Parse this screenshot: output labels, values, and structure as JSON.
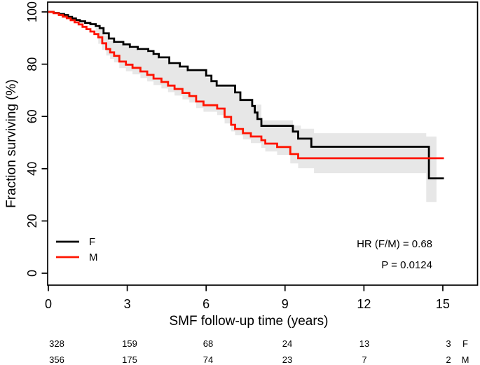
{
  "figure": {
    "background": "#ffffff",
    "axis_color": "#000000"
  },
  "chart_data": {
    "type": "line",
    "subtype": "kaplan-meier-step-survival",
    "title": "",
    "xlabel": "SMF follow-up time (years)",
    "ylabel": "Fraction surviving (%)",
    "xlim": [
      0,
      16.3
    ],
    "ylim": [
      0,
      100
    ],
    "xticks": [
      0,
      3,
      6,
      9,
      12,
      15
    ],
    "yticks": [
      0,
      20,
      40,
      60,
      80,
      100
    ],
    "grid": false,
    "legend": {
      "position": "bottom-left",
      "entries": [
        {
          "label": "F",
          "color": "#000000"
        },
        {
          "label": "M",
          "color": "#ff1400"
        }
      ]
    },
    "series": [
      {
        "name": "F",
        "color": "#000000",
        "steps": [
          [
            0,
            100
          ],
          [
            0.2,
            99.6
          ],
          [
            0.4,
            99.2
          ],
          [
            0.6,
            98.8
          ],
          [
            0.75,
            98.1
          ],
          [
            0.9,
            97.5
          ],
          [
            1.05,
            96.9
          ],
          [
            1.2,
            96.4
          ],
          [
            1.4,
            95.8
          ],
          [
            1.6,
            95.3
          ],
          [
            1.8,
            94.6
          ],
          [
            1.95,
            93.8
          ],
          [
            2.1,
            91.8
          ],
          [
            2.3,
            89.8
          ],
          [
            2.5,
            88.5
          ],
          [
            2.85,
            87.6
          ],
          [
            3.1,
            86.6
          ],
          [
            3.4,
            85.8
          ],
          [
            3.8,
            85.0
          ],
          [
            4.0,
            83.9
          ],
          [
            4.2,
            82.6
          ],
          [
            4.6,
            80.4
          ],
          [
            5.0,
            79.1
          ],
          [
            5.3,
            77.7
          ],
          [
            6.0,
            75.6
          ],
          [
            6.2,
            73.5
          ],
          [
            6.4,
            71.8
          ],
          [
            7.1,
            69.2
          ],
          [
            7.3,
            66.3
          ],
          [
            7.75,
            64.0
          ],
          [
            7.85,
            61.5
          ],
          [
            7.95,
            59.0
          ],
          [
            8.1,
            56.4
          ],
          [
            9.3,
            54.2
          ],
          [
            9.5,
            51.5
          ],
          [
            10.0,
            48.4
          ],
          [
            14.47,
            36.3
          ],
          [
            15.04,
            36.3
          ]
        ]
      },
      {
        "name": "M",
        "color": "#ff1400",
        "steps": [
          [
            0,
            100
          ],
          [
            0.2,
            99.5
          ],
          [
            0.4,
            98.8
          ],
          [
            0.55,
            98.2
          ],
          [
            0.7,
            97.6
          ],
          [
            0.85,
            96.8
          ],
          [
            1.0,
            96.0
          ],
          [
            1.15,
            95.2
          ],
          [
            1.3,
            94.3
          ],
          [
            1.45,
            93.4
          ],
          [
            1.6,
            92.5
          ],
          [
            1.75,
            91.5
          ],
          [
            1.9,
            90.3
          ],
          [
            2.05,
            88.0
          ],
          [
            2.2,
            85.8
          ],
          [
            2.35,
            84.5
          ],
          [
            2.5,
            83.2
          ],
          [
            2.7,
            81.0
          ],
          [
            2.95,
            79.8
          ],
          [
            3.2,
            78.6
          ],
          [
            3.5,
            77.2
          ],
          [
            3.76,
            75.9
          ],
          [
            4.0,
            74.5
          ],
          [
            4.3,
            73.2
          ],
          [
            4.55,
            71.8
          ],
          [
            4.8,
            70.5
          ],
          [
            5.1,
            69.0
          ],
          [
            5.36,
            67.8
          ],
          [
            5.62,
            65.7
          ],
          [
            5.9,
            64.3
          ],
          [
            6.42,
            63.0
          ],
          [
            6.7,
            59.8
          ],
          [
            6.95,
            56.8
          ],
          [
            7.1,
            55.2
          ],
          [
            7.4,
            53.6
          ],
          [
            7.7,
            52.3
          ],
          [
            8.1,
            50.9
          ],
          [
            8.25,
            49.6
          ],
          [
            8.7,
            48.3
          ],
          [
            9.2,
            45.6
          ],
          [
            9.5,
            44.0
          ],
          [
            15.04,
            44.0
          ]
        ]
      }
    ],
    "confidence_band": {
      "color": "#e7e7e7",
      "upper": [
        [
          1.8,
          93.8
        ],
        [
          2.1,
          91.0
        ],
        [
          2.3,
          89.0
        ],
        [
          2.5,
          87.7
        ],
        [
          2.85,
          86.8
        ],
        [
          3.1,
          85.8
        ],
        [
          3.4,
          85.0
        ],
        [
          3.8,
          84.2
        ],
        [
          4.0,
          83.1
        ],
        [
          4.2,
          81.8
        ],
        [
          4.6,
          79.6
        ],
        [
          5.0,
          78.3
        ],
        [
          5.3,
          76.9
        ],
        [
          6.0,
          74.8
        ],
        [
          6.2,
          72.9
        ],
        [
          6.4,
          71.2
        ],
        [
          7.1,
          68.8
        ],
        [
          7.3,
          66.5
        ],
        [
          7.75,
          64.5
        ],
        [
          8.1,
          58.5
        ],
        [
          9.3,
          56.5
        ],
        [
          9.6,
          55.3
        ],
        [
          10.1,
          53.6
        ],
        [
          14.37,
          52.3
        ],
        [
          14.76,
          52.3
        ]
      ],
      "lower": [
        [
          1.8,
          92.0
        ],
        [
          1.9,
          87.8
        ],
        [
          2.05,
          85.5
        ],
        [
          2.2,
          83.3
        ],
        [
          2.35,
          82.0
        ],
        [
          2.5,
          80.7
        ],
        [
          2.7,
          78.5
        ],
        [
          2.95,
          77.3
        ],
        [
          3.2,
          76.1
        ],
        [
          3.5,
          74.7
        ],
        [
          3.76,
          73.4
        ],
        [
          4.0,
          72.0
        ],
        [
          4.3,
          70.7
        ],
        [
          4.55,
          69.3
        ],
        [
          4.8,
          68.0
        ],
        [
          5.1,
          66.5
        ],
        [
          5.36,
          65.3
        ],
        [
          5.62,
          63.2
        ],
        [
          5.9,
          61.8
        ],
        [
          6.42,
          60.5
        ],
        [
          6.7,
          57.3
        ],
        [
          6.95,
          54.3
        ],
        [
          7.1,
          52.8
        ],
        [
          7.4,
          51.2
        ],
        [
          7.7,
          49.8
        ],
        [
          8.1,
          48.0
        ],
        [
          8.25,
          46.6
        ],
        [
          8.7,
          45.3
        ],
        [
          9.2,
          42.0
        ],
        [
          9.5,
          40.2
        ],
        [
          10.1,
          38.3
        ],
        [
          14.37,
          27.3
        ],
        [
          14.76,
          27.3
        ]
      ]
    },
    "annotations": [
      {
        "text": "HR (F/M) = 0.68"
      },
      {
        "text": "P = 0.0124"
      }
    ],
    "at_risk": {
      "times": [
        0,
        3,
        6,
        9,
        12,
        15
      ],
      "rows": [
        {
          "label": "F",
          "counts": [
            328,
            159,
            68,
            24,
            13,
            3
          ]
        },
        {
          "label": "M",
          "counts": [
            356,
            175,
            74,
            23,
            7,
            2
          ]
        }
      ]
    }
  }
}
